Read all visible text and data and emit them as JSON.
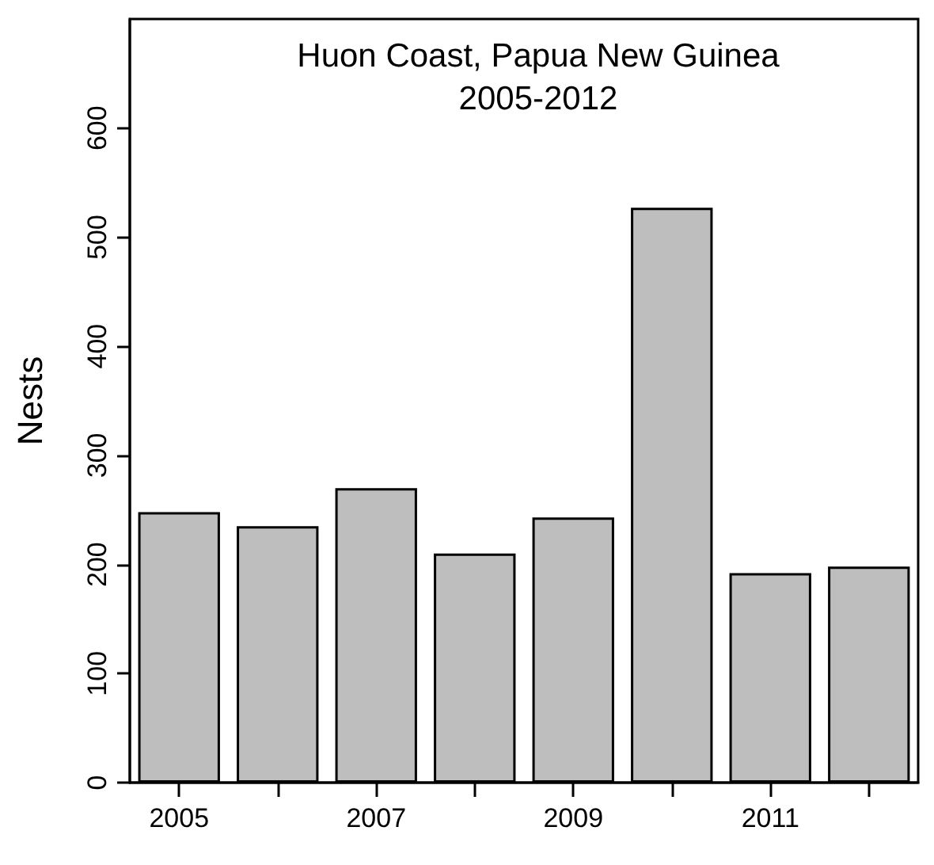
{
  "chart_data": {
    "type": "bar",
    "title": "Huon Coast, Papua New Guinea",
    "subtitle": "2005-2012",
    "ylabel": "Nests",
    "categories": [
      "2005",
      null,
      "2007",
      null,
      "2009",
      null,
      "2011",
      null
    ],
    "values": [
      248,
      235,
      270,
      210,
      243,
      527,
      192,
      198
    ],
    "color": "#bebebe",
    "ylim": [
      0,
      700
    ],
    "yticks": [
      0,
      100,
      200,
      300,
      400,
      500,
      600
    ],
    "grid": false
  }
}
